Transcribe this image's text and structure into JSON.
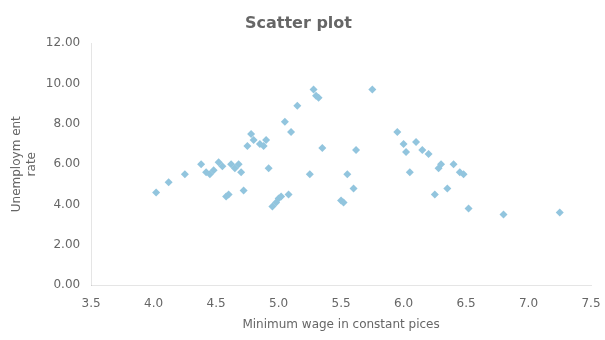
{
  "chart_data": {
    "type": "scatter",
    "title": "Scatter plot",
    "xlabel": "Minimum wage in constant pices",
    "ylabel": "Unemploym ent\nrate",
    "xlim": [
      3.5,
      7.5
    ],
    "ylim": [
      0.0,
      12.0
    ],
    "xticks": [
      3.5,
      {
        "value": 4.0,
        "label": "4.0"
      },
      4.5,
      {
        "value": 5.0,
        "label": "5.0"
      },
      5.5,
      {
        "value": 6.0,
        "label": "6.0"
      },
      6.5,
      {
        "value": 7.0,
        "label": "7.0"
      },
      7.5
    ],
    "yticks": [
      {
        "value": 0.0,
        "label": "0.00"
      },
      {
        "value": 2.0,
        "label": "2.00"
      },
      {
        "value": 4.0,
        "label": "4.00"
      },
      {
        "value": 6.0,
        "label": "6.00"
      },
      {
        "value": 8.0,
        "label": "8.00"
      },
      {
        "value": 10.0,
        "label": "10.00"
      },
      {
        "value": 12.0,
        "label": "12.00"
      }
    ],
    "color": "#92C5DE",
    "marker": "diamond",
    "grid": false,
    "x": [
      4.02,
      4.12,
      4.25,
      4.38,
      4.42,
      4.45,
      4.48,
      4.52,
      4.55,
      4.58,
      4.6,
      4.62,
      4.65,
      4.68,
      4.7,
      4.72,
      4.75,
      4.78,
      4.8,
      4.85,
      4.88,
      4.9,
      4.92,
      4.95,
      4.98,
      5.0,
      5.02,
      5.05,
      5.08,
      5.1,
      5.15,
      5.25,
      5.28,
      5.3,
      5.32,
      5.35,
      5.5,
      5.52,
      5.55,
      5.6,
      5.62,
      5.75,
      5.95,
      6.0,
      6.02,
      6.05,
      6.1,
      6.15,
      6.2,
      6.25,
      6.28,
      6.3,
      6.35,
      6.4,
      6.45,
      6.48,
      6.52,
      6.8,
      7.25
    ],
    "values": [
      4.6,
      5.1,
      5.5,
      6.0,
      5.6,
      5.5,
      5.7,
      6.1,
      5.9,
      4.4,
      4.5,
      6.0,
      5.8,
      6.0,
      5.6,
      4.7,
      6.9,
      7.5,
      7.2,
      7.0,
      6.9,
      7.2,
      5.8,
      3.9,
      4.1,
      4.3,
      4.4,
      8.1,
      4.5,
      7.6,
      8.9,
      5.5,
      9.7,
      9.4,
      9.3,
      6.8,
      4.2,
      4.1,
      5.5,
      4.8,
      6.7,
      9.7,
      7.6,
      7.0,
      6.6,
      5.6,
      7.1,
      6.7,
      6.5,
      4.5,
      5.8,
      6.0,
      4.8,
      6.0,
      5.6,
      5.5,
      3.8,
      3.5,
      3.6
    ]
  }
}
